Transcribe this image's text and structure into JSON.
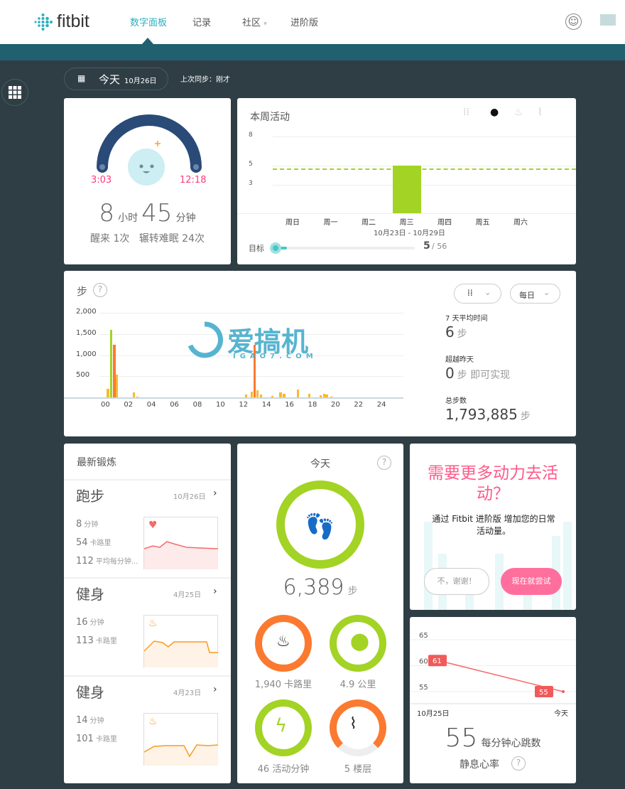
{
  "header": {
    "brand": "fitbit",
    "nav": [
      {
        "label": "数字面板",
        "active": true
      },
      {
        "label": "记录"
      },
      {
        "label": "社区",
        "caret": "▾"
      },
      {
        "label": "进阶版"
      }
    ],
    "icons": [
      "smiley-icon",
      "chat-icon"
    ]
  },
  "datebar": {
    "day": "今天",
    "date": "10月26日",
    "sync": "上次同步：刚才"
  },
  "sleep": {
    "start": "3:03",
    "end": "12:18",
    "hours": "8",
    "hours_unit": "小时",
    "minutes": "45",
    "minutes_unit": "分钟",
    "detail": "醒来 1次   辗转难眠 24次"
  },
  "week": {
    "title": "本周活动",
    "yticks": [
      "8",
      "5",
      "3"
    ],
    "days": [
      "周日",
      "周一",
      "周二",
      "周三",
      "周四",
      "周五",
      "周六"
    ],
    "values": [
      0,
      0,
      0,
      5,
      0,
      0,
      0
    ],
    "goal_line": 4.7,
    "range": "10月23日 - 10月29日",
    "goal_label": "目标",
    "goal_value": "5",
    "goal_total": "/ 56",
    "goal_progress": 0.09,
    "accent": "#a3d324"
  },
  "steps": {
    "title": "步",
    "help": "?",
    "filter_icon": "footsteps-icon",
    "period": "每日",
    "yticks": [
      "2,000",
      "1,500",
      "1,000",
      "500"
    ],
    "xticks": [
      "00",
      "02",
      "04",
      "06",
      "08",
      "10",
      "12",
      "14",
      "16",
      "18",
      "20",
      "22",
      "24"
    ],
    "stats": [
      {
        "label": "7 天平均时间",
        "value": "6",
        "unit": "步"
      },
      {
        "label": "超越昨天",
        "value": "0",
        "unit": "步 即可实现"
      },
      {
        "label": "总步数",
        "value": "1,793,885",
        "unit": "步"
      }
    ]
  },
  "chart_data": {
    "type": "bar",
    "xlabel": "",
    "ylabel": "",
    "ylim": [
      0,
      2000
    ],
    "xlim": [
      0,
      24
    ],
    "bars": [
      {
        "hour": 0.2,
        "value": 200,
        "color": "#fbb830"
      },
      {
        "hour": 0.48,
        "value": 1600,
        "color": "#a3d324"
      },
      {
        "hour": 0.76,
        "value": 1240,
        "color": "#fb7a30"
      },
      {
        "hour": 0.96,
        "value": 530,
        "color": "#fbb830"
      },
      {
        "hour": 2.46,
        "value": 110,
        "color": "#fbb830"
      },
      {
        "hour": 2.75,
        "value": 15,
        "color": "#fbb830"
      },
      {
        "hour": 12.2,
        "value": 60,
        "color": "#fbb830"
      },
      {
        "hour": 12.7,
        "value": 130,
        "color": "#fbb830"
      },
      {
        "hour": 12.94,
        "value": 1250,
        "color": "#fb7a30"
      },
      {
        "hour": 13.2,
        "value": 170,
        "color": "#fbb830"
      },
      {
        "hour": 13.5,
        "value": 60,
        "color": "#fbb830"
      },
      {
        "hour": 14.5,
        "value": 40,
        "color": "#fbb830"
      },
      {
        "hour": 15.2,
        "value": 110,
        "color": "#fbb830"
      },
      {
        "hour": 15.5,
        "value": 80,
        "color": "#fbb830"
      },
      {
        "hour": 16.7,
        "value": 180,
        "color": "#fbb830"
      },
      {
        "hour": 17.7,
        "value": 90,
        "color": "#fbb830"
      },
      {
        "hour": 18.7,
        "value": 50,
        "color": "#fbb830"
      },
      {
        "hour": 19.0,
        "value": 90,
        "color": "#fbb830"
      },
      {
        "hour": 19.2,
        "value": 60,
        "color": "#fbb830"
      },
      {
        "hour": 19.6,
        "value": 10,
        "color": "#fbb830"
      }
    ]
  },
  "workouts": {
    "title": "最新锻炼",
    "items": [
      {
        "name": "跑步",
        "date": "10月26日",
        "icon": "heart-icon",
        "stats": [
          [
            "8",
            "分钟"
          ],
          [
            "54",
            "卡路里"
          ],
          [
            "112",
            "平均每分钟..."
          ]
        ],
        "color": "#f26b6b"
      },
      {
        "name": "健身",
        "date": "4月25日",
        "icon": "flame-icon",
        "stats": [
          [
            "16",
            "分钟"
          ],
          [
            "113",
            "卡路里"
          ]
        ],
        "color": "#fb9a1e"
      },
      {
        "name": "健身",
        "date": "4月23日",
        "icon": "flame-icon",
        "stats": [
          [
            "14",
            "分钟"
          ],
          [
            "101",
            "卡路里"
          ]
        ],
        "color": "#fb9a1e"
      }
    ]
  },
  "today": {
    "title": "今天",
    "help": "?",
    "steps": "6,389",
    "steps_unit": "步",
    "calories": "1,940",
    "calories_unit": "卡路里",
    "distance": "4.9",
    "distance_unit": "公里",
    "active": "46",
    "active_unit": "活动分钟",
    "floors": "5",
    "floors_unit": "楼层"
  },
  "premium": {
    "headline": "需要更多动力去活动？",
    "body": "通过 Fitbit 进阶版 增加您的日常活动量。",
    "decline": "不，谢谢！",
    "accept": "现在就尝试"
  },
  "heart": {
    "yticks": [
      "65",
      "60",
      "55"
    ],
    "points": [
      {
        "label": "10月25日",
        "value": 61
      },
      {
        "label": "今天",
        "value": 55
      }
    ],
    "value": "55",
    "unit": "每分钟心跳数",
    "title": "静息心率",
    "help": "?"
  },
  "watermark": {
    "text": "爱搞机",
    "sub": "IGAO7.COM"
  }
}
